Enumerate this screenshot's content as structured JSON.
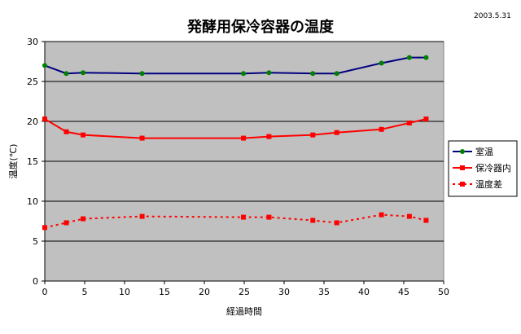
{
  "chart_data": {
    "type": "line",
    "title": "発酵用保冷容器の温度",
    "date": "2003.5.31",
    "xlabel": "経過時間",
    "ylabel": "温度(℃)",
    "xlim": [
      0,
      50
    ],
    "ylim": [
      0,
      30
    ],
    "xticks": [
      0,
      5,
      10,
      15,
      20,
      25,
      30,
      35,
      40,
      45,
      50
    ],
    "yticks": [
      0,
      5,
      10,
      15,
      20,
      25,
      30
    ],
    "grid": "horizontal",
    "legend_position": "right",
    "plot_background": "#c0c0c0",
    "series": [
      {
        "name": "室温",
        "color": "#000080",
        "marker": "circle",
        "marker_color": "#008000",
        "line": "solid",
        "x": [
          0,
          2.7,
          4.8,
          12.2,
          24.9,
          28.1,
          33.6,
          36.6,
          42.2,
          45.7,
          47.8
        ],
        "y": [
          27.0,
          26.0,
          26.1,
          26.0,
          26.0,
          26.1,
          26.0,
          26.0,
          27.3,
          28.0,
          28.0
        ]
      },
      {
        "name": "保冷器内",
        "color": "#ff0000",
        "marker": "square",
        "marker_color": "#ff0000",
        "line": "solid",
        "x": [
          0,
          2.7,
          4.8,
          12.2,
          24.9,
          28.1,
          33.6,
          36.6,
          42.2,
          45.7,
          47.8
        ],
        "y": [
          20.3,
          18.7,
          18.3,
          17.9,
          17.9,
          18.1,
          18.3,
          18.6,
          19.0,
          19.8,
          20.3
        ]
      },
      {
        "name": "温度差",
        "color": "#ff0000",
        "marker": "square",
        "marker_color": "#ff0000",
        "line": "dashed",
        "x": [
          0,
          2.7,
          4.8,
          12.2,
          24.9,
          28.1,
          33.6,
          36.6,
          42.2,
          45.7,
          47.8
        ],
        "y": [
          6.7,
          7.3,
          7.8,
          8.1,
          8.0,
          8.0,
          7.6,
          7.3,
          8.3,
          8.1,
          7.6
        ]
      }
    ]
  }
}
